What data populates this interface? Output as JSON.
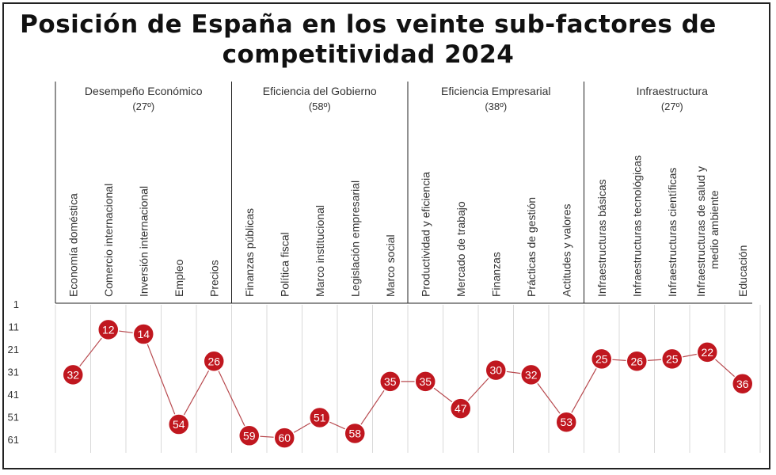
{
  "title": {
    "line1": "Posición de España en los veinte sub-factores de",
    "line2": "competitividad 2024"
  },
  "colors": {
    "marker": "#c0171f",
    "line": "#b84a4f",
    "divider": "#222222",
    "grid": "#d9d9d9"
  },
  "chart_data": {
    "type": "line",
    "title": "Posición de España en los veinte sub-factores de competitividad 2024",
    "y_ticks": [
      1,
      11,
      21,
      31,
      41,
      51,
      61
    ],
    "ylim": [
      1,
      61
    ],
    "y_inverted": true,
    "groups": [
      {
        "name": "Desempeño Económico",
        "rank": "(27º)",
        "count": 5
      },
      {
        "name": "Eficiencia del Gobierno",
        "rank": "(58º)",
        "count": 5
      },
      {
        "name": "Eficiencia Empresarial",
        "rank": "(38º)",
        "count": 5
      },
      {
        "name": "Infraestructura",
        "rank": "(27º)",
        "count": 5
      }
    ],
    "categories": [
      [
        "Economía doméstica"
      ],
      [
        "Comercio internacional"
      ],
      [
        "Inversión internacional"
      ],
      [
        "Empleo"
      ],
      [
        "Precios"
      ],
      [
        "Finanzas públicas"
      ],
      [
        "Política fiscal"
      ],
      [
        "Marco institucional"
      ],
      [
        "Legislación empresarial"
      ],
      [
        "Marco social"
      ],
      [
        "Productividad y eficiencia"
      ],
      [
        "Mercado de trabajo"
      ],
      [
        "Finanzas"
      ],
      [
        "Prácticas de gestión"
      ],
      [
        "Actitudes y valores"
      ],
      [
        "Infraestructuras básicas"
      ],
      [
        "Infraestructuras tecnológicas"
      ],
      [
        "Infraestructuras científicas"
      ],
      [
        "Infraestructuras de salud y",
        "medio ambiente"
      ],
      [
        "Educación"
      ]
    ],
    "values": [
      32,
      12,
      14,
      54,
      26,
      59,
      60,
      51,
      58,
      35,
      35,
      47,
      30,
      32,
      53,
      25,
      26,
      25,
      22,
      36
    ]
  }
}
